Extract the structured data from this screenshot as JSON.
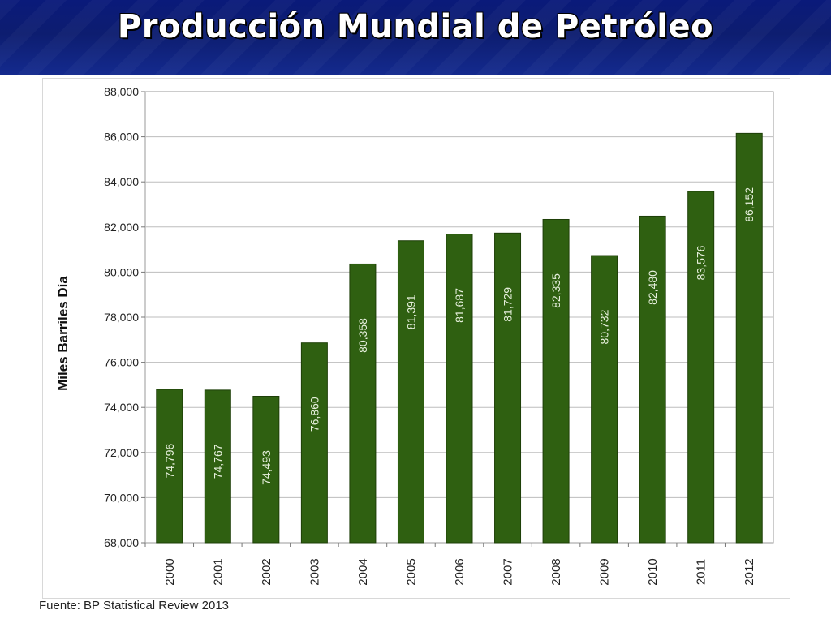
{
  "slide": {
    "title": "Producción Mundial de Petróleo",
    "source": "Fuente: BP Statistical Review 2013"
  },
  "colors": {
    "bar_fill": "#2f6011",
    "bar_edge": "#1e3f08",
    "bar_label": "#e6efdc",
    "grid": "#bdbdbd",
    "banner": "#0d1d70"
  },
  "chart_data": {
    "type": "bar",
    "title": "",
    "xlabel": "",
    "ylabel": "Miles Barriles Día",
    "ylim": [
      68000,
      88000
    ],
    "yticks": [
      68000,
      70000,
      72000,
      74000,
      76000,
      78000,
      80000,
      82000,
      84000,
      86000,
      88000
    ],
    "ytick_labels": [
      "68,000",
      "70,000",
      "72,000",
      "74,000",
      "76,000",
      "78,000",
      "80,000",
      "82,000",
      "84,000",
      "86,000",
      "88,000"
    ],
    "categories": [
      "2000",
      "2001",
      "2002",
      "2003",
      "2004",
      "2005",
      "2006",
      "2007",
      "2008",
      "2009",
      "2010",
      "2011",
      "2012"
    ],
    "values": [
      74796,
      74767,
      74493,
      76860,
      80358,
      81391,
      81687,
      81729,
      82335,
      80732,
      82480,
      83576,
      86152
    ],
    "value_labels": [
      "74,796",
      "74,767",
      "74,493",
      "76,860",
      "80,358",
      "81,391",
      "81,687",
      "81,729",
      "82,335",
      "80,732",
      "82,480",
      "83,576",
      "86,152"
    ],
    "grid": true,
    "legend": "none"
  }
}
